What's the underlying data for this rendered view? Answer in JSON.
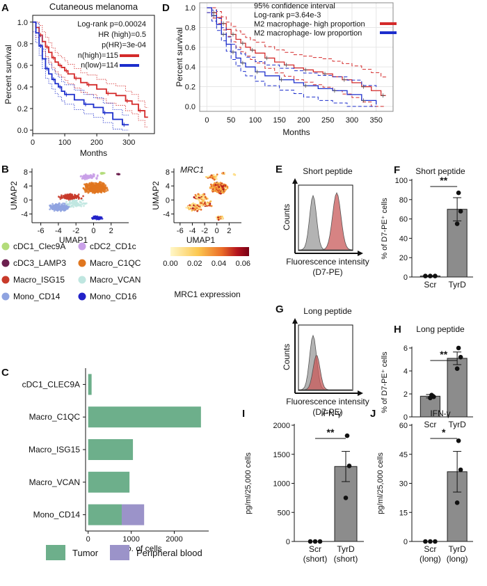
{
  "panels": {
    "A": "A",
    "B": "B",
    "C": "C",
    "D": "D",
    "E": "E",
    "F": "F",
    "G": "G",
    "H": "H",
    "I": "I",
    "J": "J"
  },
  "colors": {
    "red": "#d42a2a",
    "blue": "#1c2ecc",
    "grey": "#8c8c8c",
    "tumor": "#6daf8b",
    "blood": "#9b93c9",
    "histRed": "#c85a5a",
    "histGrey": "#9a9a9a"
  },
  "chart_data": [
    {
      "id": "A",
      "type": "line",
      "title": "Cutaneous melanoma",
      "xlabel": "Months",
      "ylabel": "Percent survival",
      "xlim": [
        0,
        380
      ],
      "ylim": [
        0,
        1.05
      ],
      "xticks": [
        "0",
        "100",
        "200",
        "300"
      ],
      "yticks": [
        "0.0",
        "0.2",
        "0.4",
        "0.6",
        "0.8",
        "1.0"
      ],
      "stats": [
        "Log-rank p=0.00024",
        "HR (high)=0.5",
        "p(HR)=3e-04"
      ],
      "legend": [
        "n(high)=115",
        "n(low)=114"
      ],
      "series": [
        {
          "name": "n(high)=115",
          "color": "#d42a2a",
          "x": [
            0,
            10,
            20,
            30,
            40,
            50,
            60,
            70,
            80,
            90,
            100,
            110,
            130,
            150,
            170,
            200,
            230,
            260,
            290,
            310,
            330,
            350,
            360
          ],
          "y": [
            1.0,
            0.95,
            0.88,
            0.82,
            0.77,
            0.72,
            0.67,
            0.63,
            0.6,
            0.58,
            0.55,
            0.52,
            0.48,
            0.44,
            0.42,
            0.38,
            0.34,
            0.32,
            0.27,
            0.24,
            0.18,
            0.12,
            0.12
          ]
        },
        {
          "name": "n(low)=114",
          "color": "#1c2ecc",
          "x": [
            0,
            10,
            20,
            30,
            40,
            50,
            60,
            70,
            80,
            90,
            100,
            130,
            160,
            190,
            220,
            250,
            280,
            300
          ],
          "y": [
            1.0,
            0.9,
            0.78,
            0.66,
            0.57,
            0.52,
            0.47,
            0.43,
            0.4,
            0.36,
            0.33,
            0.28,
            0.24,
            0.21,
            0.16,
            0.1,
            0.05,
            0.05
          ]
        }
      ]
    },
    {
      "id": "D",
      "type": "line",
      "title": "",
      "xlabel": "Months",
      "ylabel": "Percent survival",
      "xlim": [
        -15,
        385
      ],
      "ylim": [
        -0.05,
        1.05
      ],
      "xticks": [
        "0",
        "50",
        "100",
        "150",
        "200",
        "250",
        "300",
        "350"
      ],
      "yticks": [
        "0.0",
        "0.2",
        "0.4",
        "0.6",
        "0.8",
        "1.0"
      ],
      "stats": [
        "95% confidence interval",
        "Log-rank p=3.64e-3"
      ],
      "legend": [
        "M2 macrophage- high proportion",
        "M2 macrophage- low proportion"
      ],
      "series": [
        {
          "name": "M2 macrophage- high proportion",
          "color": "#d42a2a",
          "x": [
            0,
            10,
            20,
            30,
            40,
            50,
            60,
            70,
            80,
            90,
            100,
            120,
            140,
            160,
            180,
            200,
            220,
            240,
            260,
            280,
            300,
            320,
            340,
            360,
            370
          ],
          "y": [
            1.0,
            0.95,
            0.9,
            0.84,
            0.78,
            0.73,
            0.68,
            0.64,
            0.6,
            0.57,
            0.54,
            0.49,
            0.45,
            0.42,
            0.39,
            0.37,
            0.35,
            0.33,
            0.3,
            0.27,
            0.24,
            0.2,
            0.16,
            0.11,
            0.11
          ]
        },
        {
          "name": "M2 macrophage- low proportion",
          "color": "#1c2ecc",
          "x": [
            0,
            10,
            20,
            30,
            40,
            50,
            60,
            70,
            80,
            100,
            120,
            150,
            180,
            200,
            230,
            260,
            290,
            320,
            350
          ],
          "y": [
            1.0,
            0.92,
            0.83,
            0.73,
            0.63,
            0.55,
            0.49,
            0.44,
            0.4,
            0.35,
            0.31,
            0.27,
            0.24,
            0.21,
            0.18,
            0.16,
            0.12,
            0.06,
            0.02
          ]
        }
      ]
    },
    {
      "id": "B1",
      "type": "scatter",
      "xlabel": "UMAP1",
      "ylabel": "UMAP2",
      "title": "",
      "xticks": [
        "-6",
        "-4",
        "-2",
        "0",
        "2"
      ],
      "yticks": [
        "-4",
        "0",
        "4",
        "8"
      ],
      "xlim": [
        -7,
        4
      ],
      "ylim": [
        -6.5,
        9
      ]
    },
    {
      "id": "B2",
      "type": "scatter",
      "xlabel": "UMAP1",
      "ylabel": "UMAP2",
      "title": "MRC1",
      "xticks": [
        "-6",
        "-4",
        "-2",
        "0",
        "2"
      ],
      "yticks": [
        "-4",
        "0",
        "4",
        "8"
      ],
      "xlim": [
        -7,
        4
      ],
      "ylim": [
        -6.5,
        9
      ],
      "colorbar": {
        "ticks": [
          "0.00",
          "0.02",
          "0.04",
          "0.06"
        ],
        "label": "MRC1 expression",
        "range": [
          0,
          0.065
        ]
      }
    },
    {
      "id": "B_legend",
      "type": "legend",
      "items": [
        {
          "label": "cDC1_Clec9A",
          "color": "#b3dc7a"
        },
        {
          "label": "cDC2_CD1c",
          "color": "#c9a0e8"
        },
        {
          "label": "cDC3_LAMP3",
          "color": "#6b1f4e"
        },
        {
          "label": "Macro_C1QC",
          "color": "#e0761f"
        },
        {
          "label": "Macro_ISG15",
          "color": "#c83a2a"
        },
        {
          "label": "Macro_VCAN",
          "color": "#bfe6e0"
        },
        {
          "label": "Mono_CD14",
          "color": "#8fa3e0"
        },
        {
          "label": "Mono_CD16",
          "color": "#2222c8"
        }
      ]
    },
    {
      "id": "C",
      "type": "bar",
      "orientation": "horizontal",
      "stacked": true,
      "categories": [
        "cDC1_CLEC9A",
        "Macro_C1QC",
        "Macro_ISG15",
        "Macro_VCAN",
        "Mono_CD14"
      ],
      "series": [
        {
          "name": "Tumor",
          "values": [
            80,
            2620,
            1040,
            960,
            780
          ]
        },
        {
          "name": "Peripheral blood",
          "values": [
            0,
            0,
            0,
            0,
            520
          ]
        }
      ],
      "xlabel": "No. of  cells",
      "xticks": [
        "0",
        "1000",
        "2000"
      ],
      "xlim": [
        -60,
        2800
      ],
      "legend": [
        "Tumor",
        "Peripheral blood"
      ]
    },
    {
      "id": "E",
      "type": "histogram",
      "title": "Short peptide",
      "xlabel": "Fluorescence intensity",
      "xlabel2": "(D7-PE)",
      "ylabel": "Counts"
    },
    {
      "id": "G",
      "type": "histogram",
      "title": "Long peptide",
      "xlabel": "Fluorescence intensity",
      "xlabel2": "(D7-PE)",
      "ylabel": "Counts"
    },
    {
      "id": "F",
      "type": "bar",
      "title": "Short peptide",
      "ylabel": "% of D7-PE⁺ cells",
      "categories": [
        "Scr",
        "TyrD"
      ],
      "values": [
        1.0,
        70
      ],
      "errors": [
        0.3,
        12
      ],
      "points": [
        [
          1,
          1,
          1
        ],
        [
          87,
          68,
          55
        ]
      ],
      "ylim": [
        0,
        100
      ],
      "yticks": [
        "0",
        "20",
        "40",
        "60",
        "80",
        "100"
      ],
      "significance": "**"
    },
    {
      "id": "H",
      "type": "bar",
      "title": "Long peptide",
      "ylabel": "% of D7-PE⁺ cells",
      "categories": [
        "Scr",
        "TyrD"
      ],
      "values": [
        1.8,
        5.1
      ],
      "errors": [
        0.15,
        0.55
      ],
      "points": [
        [
          1.9,
          1.75,
          1.65
        ],
        [
          6.0,
          5.2,
          4.2
        ]
      ],
      "ylim": [
        0,
        6
      ],
      "yticks": [
        "0",
        "2",
        "4",
        "6"
      ],
      "significance": "**"
    },
    {
      "id": "I",
      "type": "bar",
      "title": "IFN-γ",
      "ylabel": "pg/ml/25,000 cells",
      "categories": [
        "Scr\n(short)",
        "TyrD\n(short)"
      ],
      "values": [
        0,
        1290
      ],
      "errors": [
        0,
        260
      ],
      "points": [
        [
          0,
          0,
          0
        ],
        [
          1820,
          1300,
          750
        ]
      ],
      "ylim": [
        0,
        2000
      ],
      "yticks": [
        "0",
        "500",
        "1000",
        "1500",
        "2000"
      ],
      "significance": "**"
    },
    {
      "id": "J",
      "type": "bar",
      "title": "IFN-γ",
      "ylabel": "pg/ml/25,000 cells",
      "categories": [
        "Scr\n(long)",
        "TyrD\n(long)"
      ],
      "values": [
        0,
        36
      ],
      "errors": [
        0,
        10.5
      ],
      "points": [
        [
          0,
          0,
          0
        ],
        [
          52,
          37,
          20
        ]
      ],
      "ylim": [
        0,
        60
      ],
      "yticks": [
        "0",
        "15",
        "30",
        "45",
        "60"
      ],
      "significance": "*"
    }
  ]
}
